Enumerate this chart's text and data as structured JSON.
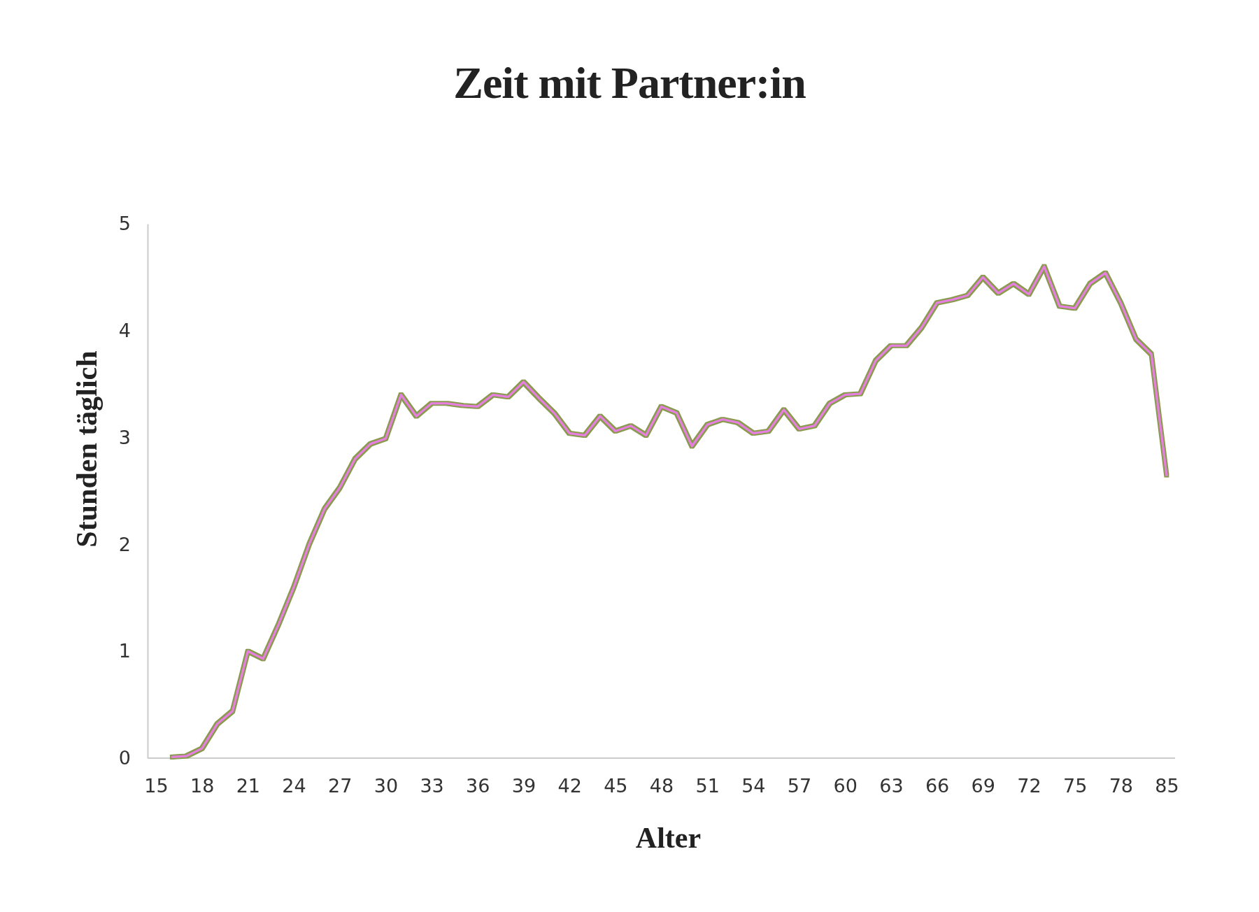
{
  "chart_data": {
    "type": "line",
    "title": "Zeit mit Partner:in",
    "xlabel": "Alter",
    "ylabel": "Stunden täglich",
    "categories": [
      "15",
      null,
      null,
      "18",
      null,
      null,
      "21",
      null,
      null,
      "24",
      null,
      null,
      "27",
      null,
      null,
      "30",
      null,
      null,
      "33",
      null,
      null,
      "36",
      null,
      null,
      "39",
      null,
      null,
      "42",
      null,
      null,
      "45",
      null,
      null,
      "48",
      null,
      null,
      "51",
      null,
      null,
      "54",
      null,
      null,
      "57",
      null,
      null,
      "60",
      null,
      null,
      "63",
      null,
      null,
      "66",
      null,
      null,
      "69",
      null,
      null,
      "72",
      null,
      null,
      "75",
      null,
      null,
      "78",
      null,
      null,
      "85"
    ],
    "series": [
      {
        "color": "#e87ee0",
        "values": [
          null,
          0.01,
          0.02,
          0.09,
          0.32,
          0.44,
          1.0,
          0.93,
          1.25,
          1.6,
          2.0,
          2.33,
          2.53,
          2.8,
          2.94,
          2.99,
          3.4,
          3.2,
          3.32,
          3.32,
          3.3,
          3.29,
          3.4,
          3.38,
          3.52,
          3.37,
          3.23,
          3.04,
          3.02,
          3.2,
          3.06,
          3.11,
          3.02,
          3.29,
          3.23,
          2.92,
          3.12,
          3.17,
          3.14,
          3.04,
          3.06,
          3.26,
          3.08,
          3.11,
          3.32,
          3.4,
          3.41,
          3.72,
          3.86,
          3.86,
          4.03,
          4.26,
          4.29,
          4.33,
          4.5,
          4.35,
          4.44,
          4.34,
          4.6,
          4.23,
          4.21,
          4.44,
          4.54,
          4.26,
          3.92,
          3.78,
          2.64
        ]
      }
    ],
    "ylim": [
      0,
      5
    ],
    "yticks": [
      0,
      1,
      2,
      3,
      4,
      5
    ],
    "grid": false
  }
}
